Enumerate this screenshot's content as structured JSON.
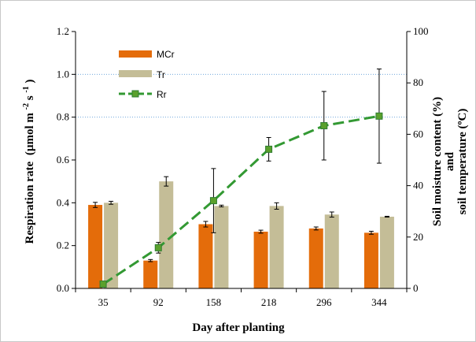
{
  "chart_data": {
    "type": "bar",
    "categories": [
      "35",
      "92",
      "158",
      "218",
      "296",
      "344"
    ],
    "xlabel": "Day  after planting",
    "ylabel": "Respiration rate",
    "ylabel_unit_prefix": "(µmol m",
    "ylabel_unit_sup1": "-2",
    "ylabel_unit_mid": " s",
    "ylabel_unit_sup2": "-1",
    "ylabel_unit_suffix": ")",
    "y2label_line1": "Soil moisture content (%)",
    "y2label_line2": "and",
    "y2label_line3": "soil temperature (ºC)",
    "ylim": [
      0,
      1.2
    ],
    "yticks": [
      "0.0",
      "0.2",
      "0.4",
      "0.6",
      "0.8",
      "1.0",
      "1.2"
    ],
    "y2lim": [
      0,
      100
    ],
    "y2ticks": [
      "0",
      "20",
      "40",
      "60",
      "80",
      "100"
    ],
    "gridlines_dotted_at": [
      0.8,
      1.0
    ],
    "legend_position": "top-left",
    "series": [
      {
        "name": "MCr",
        "kind": "bar",
        "axis": "left",
        "color": "#E46C0A",
        "values": [
          0.39,
          0.13,
          0.3,
          0.265,
          0.28,
          0.26
        ],
        "errors": [
          0.012,
          0.005,
          0.013,
          0.007,
          0.007,
          0.007
        ]
      },
      {
        "name": "Tr",
        "kind": "bar",
        "axis": "left",
        "color": "#C4BD97",
        "values": [
          0.4,
          0.5,
          0.385,
          0.385,
          0.345,
          0.335
        ],
        "errors": [
          0.007,
          0.022,
          0.004,
          0.015,
          0.012,
          0.002
        ]
      },
      {
        "name": "Rr",
        "kind": "line",
        "axis": "left",
        "color": "#339933",
        "marker_color": "#5AA02C",
        "values": [
          0.02,
          0.19,
          0.41,
          0.65,
          0.76,
          0.805
        ],
        "errors": [
          0.0,
          0.025,
          0.15,
          0.055,
          0.16,
          0.22
        ]
      }
    ]
  }
}
